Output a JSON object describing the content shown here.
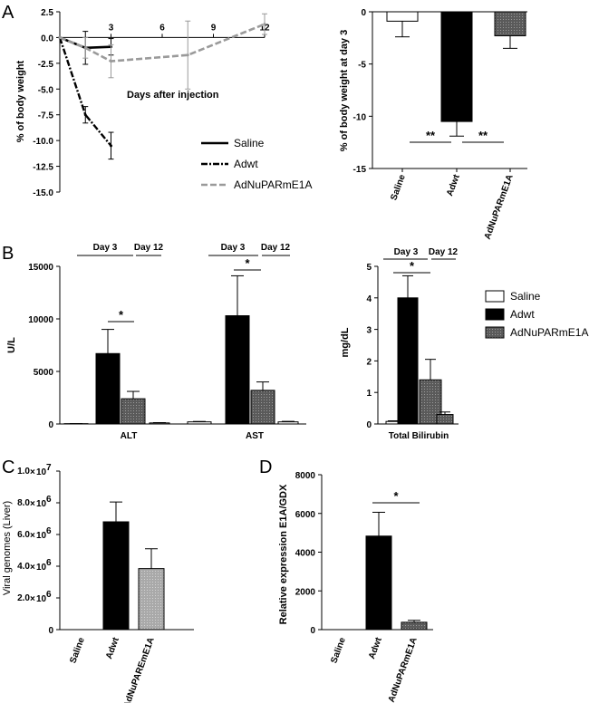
{
  "panel_letters": {
    "a": "A",
    "b": "B",
    "c": "C",
    "d": "D"
  },
  "colors": {
    "saline": "#ffffff",
    "adwt": "#000000",
    "adnupar": "#6a6a6a",
    "adnupar_c": "#a8a8a8",
    "gray_line": "#9a9a9a"
  },
  "chart_data": [
    {
      "id": "A1",
      "type": "line",
      "ylabel": "% of body weight",
      "annotation": "Days after injection",
      "ylim": [
        -15,
        2.5
      ],
      "xlim": [
        0,
        12
      ],
      "x_ticks": [
        "3",
        "6",
        "9",
        "12"
      ],
      "y_ticks": [
        "2.5",
        "0.0",
        "-2.5",
        "-5.0",
        "-7.5",
        "-10.0",
        "-12.5",
        "-15.0"
      ],
      "series": [
        {
          "name": "Saline",
          "x": [
            0,
            1.5,
            3
          ],
          "y": [
            0,
            -1.0,
            -0.9
          ],
          "err": [
            0,
            1.6,
            0.8
          ]
        },
        {
          "name": "Adwt",
          "x": [
            0,
            1.5,
            3
          ],
          "y": [
            0,
            -7.5,
            -10.5
          ],
          "err": [
            0,
            0.8,
            1.3
          ]
        },
        {
          "name": "AdNuPARmE1A",
          "x": [
            0,
            1.5,
            3,
            7.5,
            12
          ],
          "y": [
            0,
            -1.0,
            -2.3,
            -1.7,
            1.3
          ],
          "err": [
            0,
            1.0,
            1.6,
            3.3,
            1.0
          ]
        }
      ]
    },
    {
      "id": "A2",
      "type": "bar",
      "ylabel": "% of body weight  at day 3",
      "categories": [
        "Saline",
        "Adwt",
        "AdNuPARmE1A"
      ],
      "values": [
        -0.9,
        -10.5,
        -2.3
      ],
      "errors": [
        1.5,
        1.4,
        1.2
      ],
      "ylim": [
        -15,
        0
      ],
      "y_ticks": [
        "0",
        "-5",
        "-10",
        "-15"
      ],
      "significance": [
        "**",
        "**"
      ]
    },
    {
      "id": "B1",
      "type": "bar",
      "ylabel": "U/L",
      "categories": [
        "ALT",
        "AST"
      ],
      "series": [
        {
          "name": "Saline",
          "values": [
            30,
            200
          ],
          "errors": [
            5,
            40
          ]
        },
        {
          "name": "Adwt",
          "values": [
            6700,
            10300
          ],
          "errors": [
            2300,
            3800
          ]
        },
        {
          "name": "AdNuPARmE1A",
          "values": [
            2400,
            3200
          ],
          "errors": [
            700,
            800
          ]
        },
        {
          "name": "Saline",
          "values": [
            100,
            200
          ],
          "errors": [
            30,
            50
          ]
        }
      ],
      "ylim": [
        0,
        15000
      ],
      "y_ticks": [
        "0",
        "5000",
        "10000",
        "15000"
      ],
      "day_labels": [
        "Day 3",
        "Day 12"
      ],
      "significance": [
        "*",
        "*"
      ]
    },
    {
      "id": "B2",
      "type": "bar",
      "ylabel": "mg/dL",
      "categories": [
        "Total Bilirubin"
      ],
      "series": [
        {
          "name": "Saline",
          "values": [
            0.08
          ],
          "errors": [
            0.02
          ]
        },
        {
          "name": "Adwt",
          "values": [
            4.0
          ],
          "errors": [
            0.7
          ]
        },
        {
          "name": "AdNuPARmE1A",
          "values": [
            1.4
          ],
          "errors": [
            0.65
          ]
        },
        {
          "name": "Saline",
          "values": [
            0.3
          ],
          "errors": [
            0.08
          ]
        }
      ],
      "ylim": [
        0,
        5
      ],
      "y_ticks": [
        "0",
        "1",
        "2",
        "3",
        "4",
        "5"
      ],
      "day_labels": [
        "Day 3",
        "Day 12"
      ],
      "significance": [
        "*"
      ]
    },
    {
      "id": "C",
      "type": "bar",
      "ylabel": "Viral genomes (Liver)",
      "categories": [
        "Saline",
        "Adwt",
        "AdNuPAREmE1A"
      ],
      "values": [
        0,
        6800000,
        3850000
      ],
      "errors": [
        0,
        1250000,
        1250000
      ],
      "ylim": [
        0,
        10000000
      ],
      "y_ticks": [
        {
          "m": "0",
          "e": ""
        },
        {
          "m": "2.0",
          "e": "6"
        },
        {
          "m": "4.0",
          "e": "6"
        },
        {
          "m": "6.0",
          "e": "6"
        },
        {
          "m": "8.0",
          "e": "6"
        },
        {
          "m": "1.0",
          "e": "7"
        }
      ]
    },
    {
      "id": "D",
      "type": "bar",
      "ylabel": "Relative expression E1A/GDX",
      "categories": [
        "Saline",
        "Adwt",
        "AdNuPARmE1A"
      ],
      "values": [
        0,
        4830,
        380
      ],
      "errors": [
        0,
        1230,
        100
      ],
      "ylim": [
        0,
        8000
      ],
      "y_ticks": [
        "0",
        "2000",
        "4000",
        "6000",
        "8000"
      ],
      "significance": [
        "*"
      ]
    }
  ],
  "legend_a": [
    "Saline",
    "Adwt",
    "AdNuPARmE1A"
  ],
  "legend_b": [
    "Saline",
    "Adwt",
    "AdNuPARmE1A"
  ]
}
